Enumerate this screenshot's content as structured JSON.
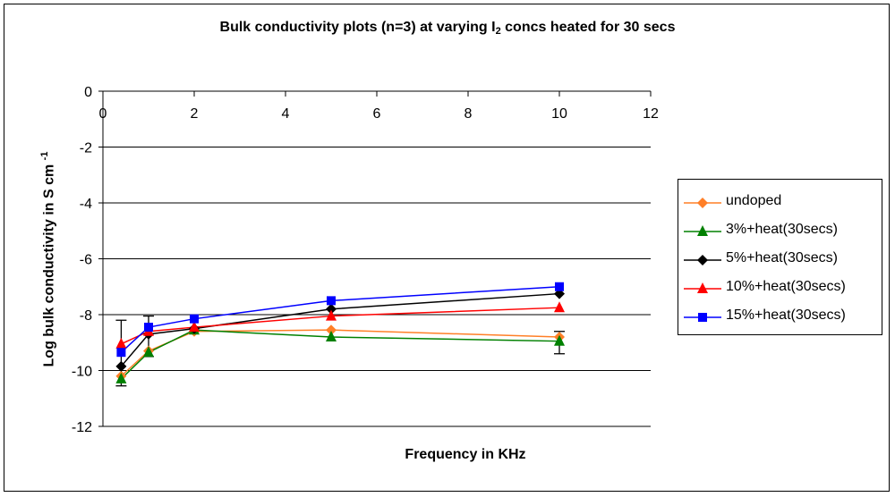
{
  "chart_data": {
    "type": "line",
    "title_pre": "Bulk conductivity plots (n=3) at varying I",
    "title_sub": "2",
    "title_post": " concs heated for 30 secs",
    "xlabel": "Frequency in KHz",
    "ylabel": "Log bulk conductivity in S cm",
    "ylabel_sup": "-1",
    "xlim": [
      0,
      12
    ],
    "ylim": [
      -12,
      0
    ],
    "xticks": [
      "0",
      "2",
      "4",
      "6",
      "8",
      "10",
      "12"
    ],
    "yticks": [
      "0",
      "-2",
      "-4",
      "-6",
      "-8",
      "-10",
      "-12"
    ],
    "grid": "horizontal",
    "legend_position": "right",
    "series": [
      {
        "name": "undoped",
        "color": "#ff7f27",
        "marker": "diamond",
        "x": [
          0.4,
          1,
          2,
          5,
          10
        ],
        "y": [
          -10.2,
          -9.3,
          -8.6,
          -8.55,
          -8.8
        ]
      },
      {
        "name": "3%+heat(30secs)",
        "color": "#008000",
        "marker": "triangle",
        "x": [
          0.4,
          1,
          2,
          5,
          10
        ],
        "y": [
          -10.3,
          -9.35,
          -8.55,
          -8.8,
          -8.95
        ]
      },
      {
        "name": "5%+heat(30secs)",
        "color": "#000000",
        "marker": "diamond",
        "x": [
          0.4,
          1,
          2,
          5,
          10
        ],
        "y": [
          -9.85,
          -8.7,
          -8.5,
          -7.8,
          -7.25
        ]
      },
      {
        "name": "10%+heat(30secs)",
        "color": "#ff0000",
        "marker": "triangle",
        "x": [
          0.4,
          1,
          2,
          5,
          10
        ],
        "y": [
          -9.05,
          -8.6,
          -8.45,
          -8.05,
          -7.75
        ]
      },
      {
        "name": "15%+heat(30secs)",
        "color": "#0000ff",
        "marker": "square",
        "x": [
          0.4,
          1,
          2,
          5,
          10
        ],
        "y": [
          -9.35,
          -8.45,
          -8.15,
          -7.5,
          -7.0
        ]
      }
    ],
    "error_bars": [
      {
        "x": 0.4,
        "low": -10.55,
        "high": -8.2
      },
      {
        "x": 1,
        "low": -9.5,
        "high": -8.05
      },
      {
        "x": 10,
        "low": -9.4,
        "high": -8.6
      }
    ]
  }
}
